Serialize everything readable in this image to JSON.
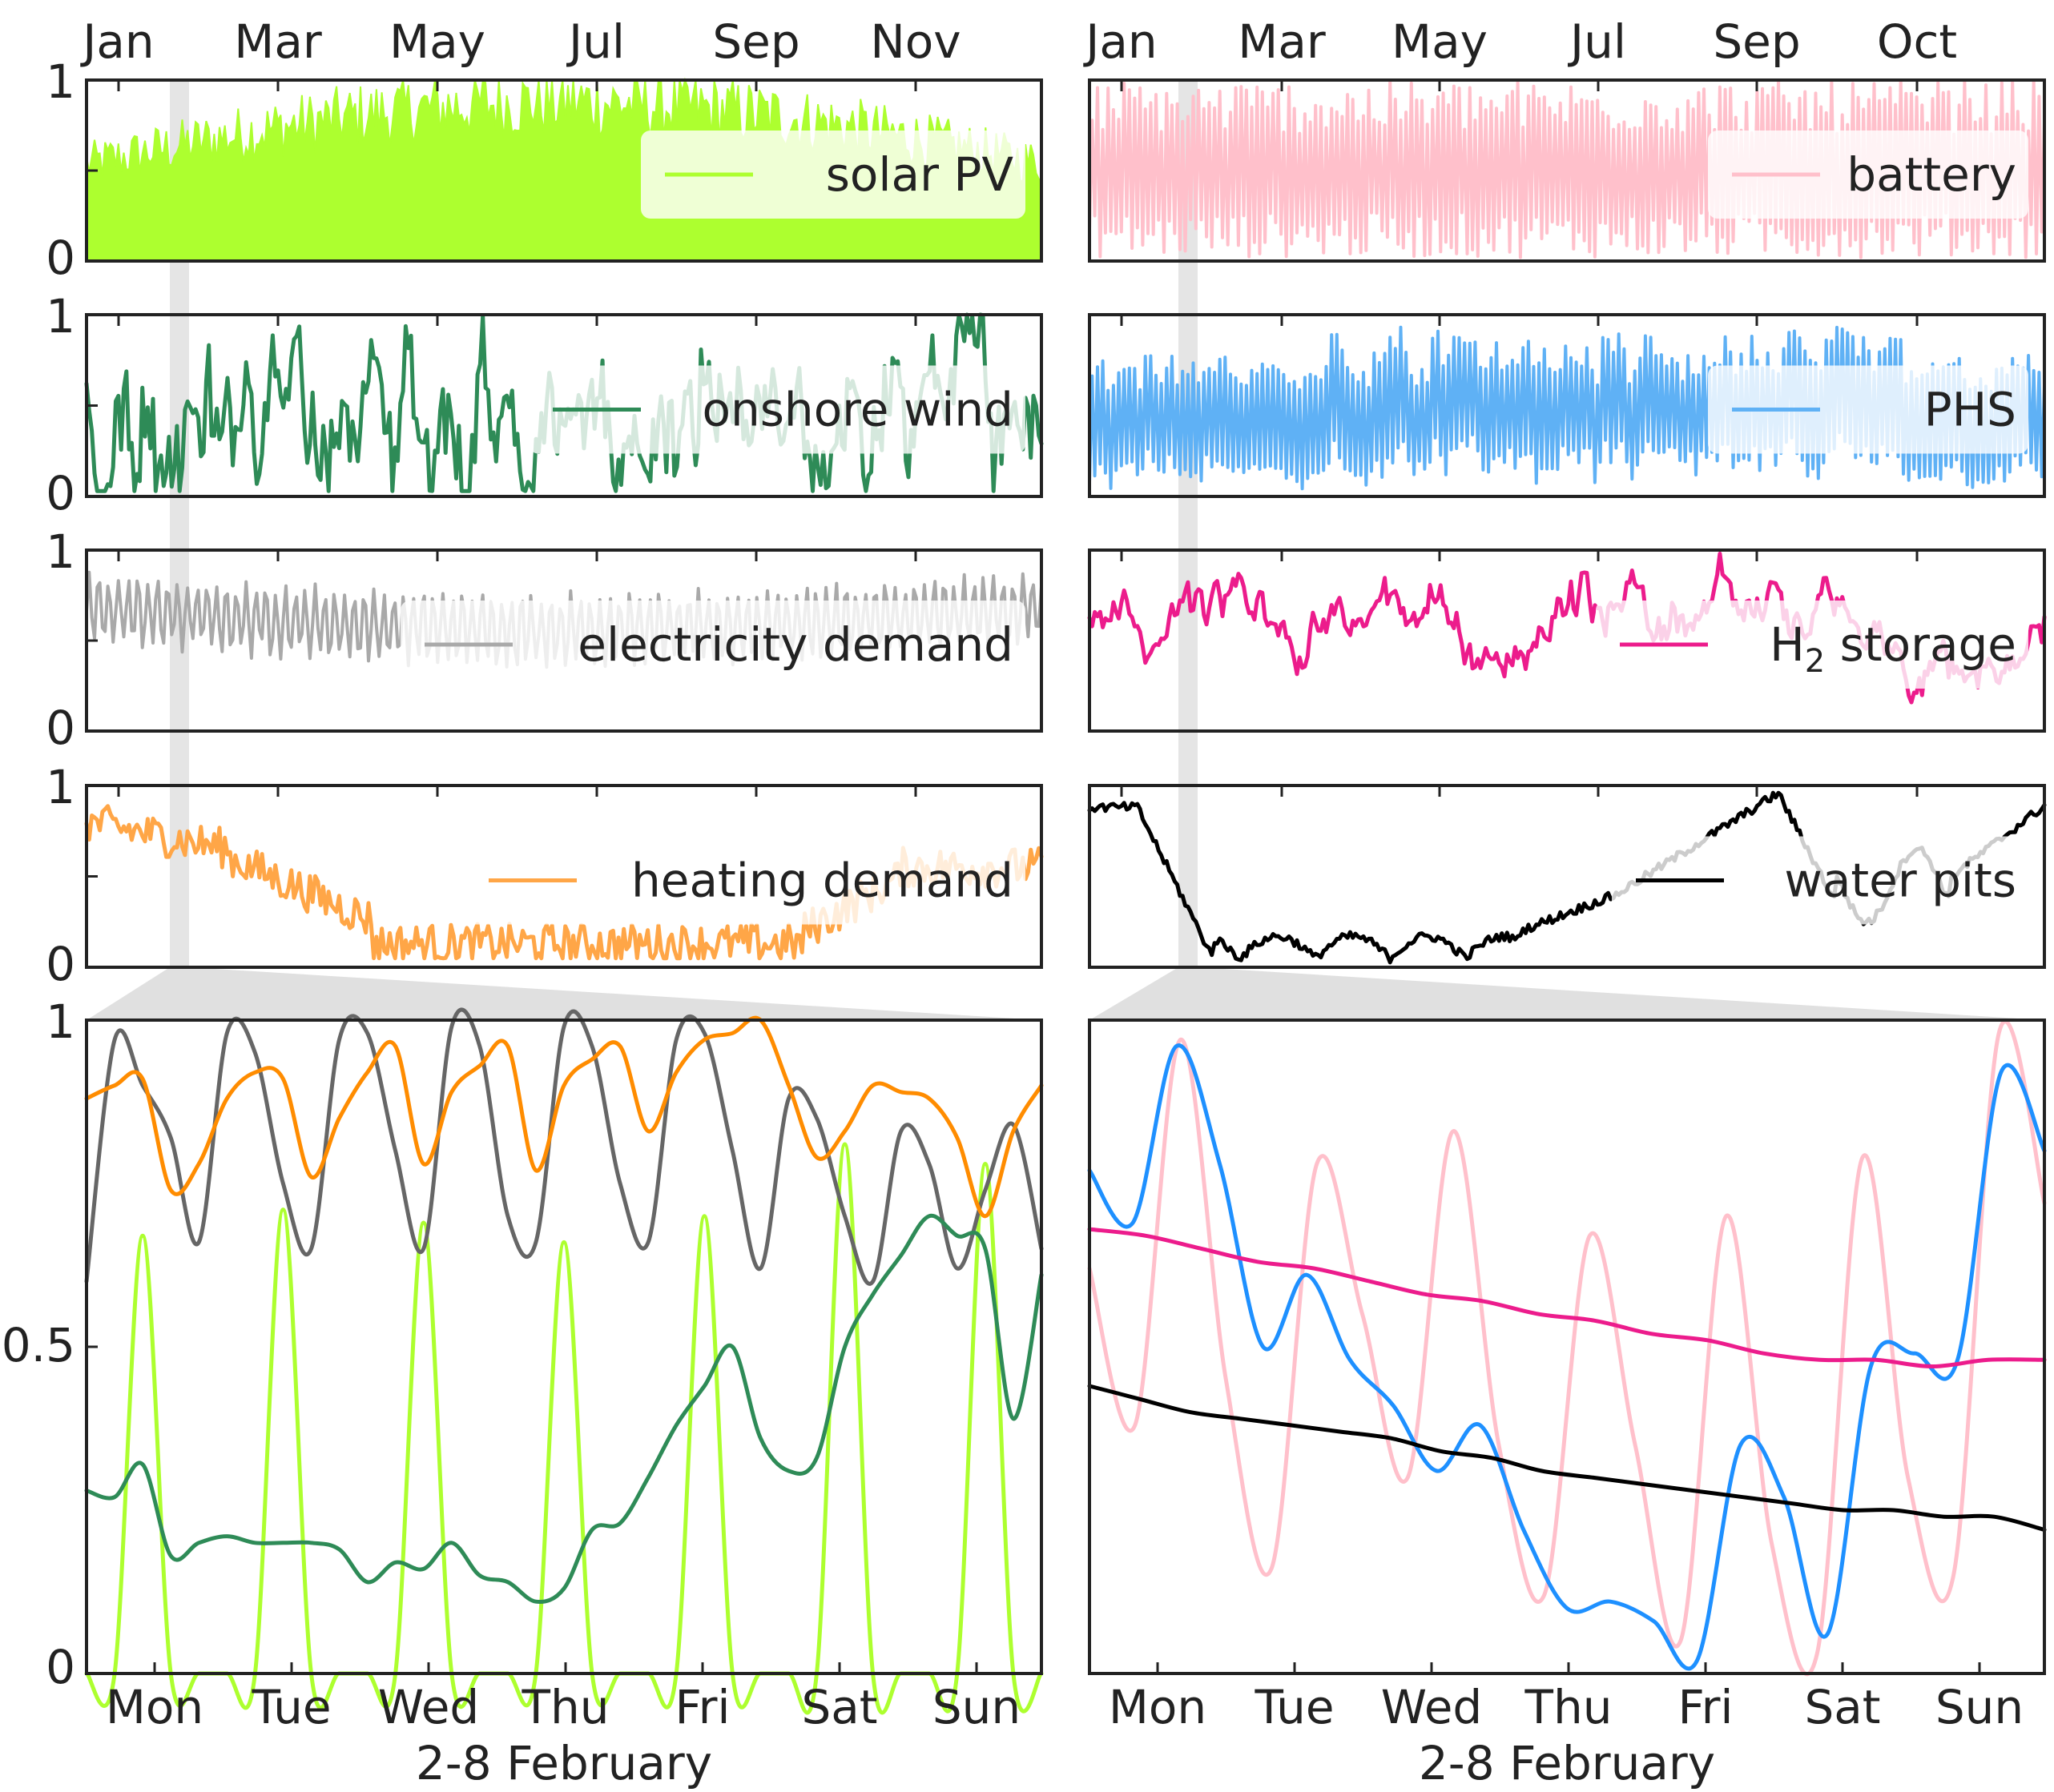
{
  "chart_data": [
    {
      "panel": "top-left-1",
      "type": "area",
      "month_labels": [
        "Jan",
        "Mar",
        "May",
        "Jul",
        "Sep",
        "Nov"
      ],
      "ylim": [
        0,
        1
      ],
      "yticks": [
        0,
        1
      ],
      "series": [
        {
          "name": "solar PV",
          "color": "#adff2f",
          "shape": "solar"
        }
      ],
      "legend_position": "right"
    },
    {
      "panel": "top-left-2",
      "type": "line",
      "ylim": [
        0,
        1
      ],
      "yticks": [
        0,
        1
      ],
      "series": [
        {
          "name": "onshore wind",
          "color": "#2e8b57",
          "shape": "wind"
        }
      ],
      "legend_position": "right"
    },
    {
      "panel": "top-left-3",
      "type": "line",
      "ylim": [
        0,
        1
      ],
      "yticks": [
        0,
        1
      ],
      "series": [
        {
          "name": "electricity demand",
          "color": "#a9a9a9",
          "shape": "elec"
        }
      ],
      "legend_position": "right"
    },
    {
      "panel": "top-left-4",
      "type": "line",
      "ylim": [
        0,
        1
      ],
      "yticks": [
        0,
        1
      ],
      "series": [
        {
          "name": "heating demand",
          "color": "#ffa647",
          "shape": "heat"
        }
      ],
      "legend_position": "right"
    },
    {
      "panel": "top-right-1",
      "type": "line",
      "month_labels": [
        "Jan",
        "Mar",
        "May",
        "Jul",
        "Sep",
        "Oct"
      ],
      "ylim": [
        0,
        1
      ],
      "yticks": [],
      "series": [
        {
          "name": "battery",
          "color": "#ffc0cb",
          "shape": "battery"
        }
      ],
      "legend_position": "right"
    },
    {
      "panel": "top-right-2",
      "type": "line",
      "ylim": [
        0,
        1
      ],
      "yticks": [],
      "series": [
        {
          "name": "PHS",
          "color": "#5fb1f5",
          "shape": "phs"
        }
      ],
      "legend_position": "right"
    },
    {
      "panel": "top-right-3",
      "type": "line",
      "ylim": [
        0,
        1
      ],
      "yticks": [],
      "series": [
        {
          "name": "H",
          "subscript": "2",
          "name_suffix": " storage",
          "color": "#ec1c8c",
          "shape": "h2"
        }
      ],
      "legend_position": "right"
    },
    {
      "panel": "top-right-4",
      "type": "line",
      "ylim": [
        0,
        1
      ],
      "yticks": [],
      "series": [
        {
          "name": "water pits",
          "color": "#000000",
          "shape": "pits"
        }
      ],
      "legend_position": "right"
    },
    {
      "panel": "bottom-left",
      "type": "line",
      "xlabel": "2-8 February",
      "days": [
        "Mon",
        "Tue",
        "Wed",
        "Thu",
        "Fri",
        "Sat",
        "Sun"
      ],
      "ylim": [
        0,
        1
      ],
      "yticks": [
        0,
        0.5,
        1
      ],
      "ytick_labels": [
        "0",
        "0.5",
        "1"
      ],
      "series": [
        {
          "color": "#adff2f",
          "values": [
            0,
            0,
            0.67,
            0,
            0,
            0,
            0,
            0.71,
            0,
            0,
            0,
            0,
            0.69,
            0,
            0,
            0,
            0,
            0.66,
            0,
            0,
            0,
            0,
            0.7,
            0,
            0,
            0,
            0,
            0.81,
            0,
            0,
            0,
            0,
            0.78,
            0,
            0
          ]
        },
        {
          "color": "#666666",
          "values": [
            0.6,
            0.97,
            0.9,
            0.82,
            0.66,
            0.98,
            0.95,
            0.75,
            0.65,
            0.97,
            0.98,
            0.8,
            0.65,
            0.99,
            0.96,
            0.7,
            0.66,
            0.99,
            0.96,
            0.75,
            0.66,
            0.97,
            0.98,
            0.8,
            0.62,
            0.88,
            0.85,
            0.7,
            0.6,
            0.83,
            0.78,
            0.62,
            0.74,
            0.84,
            0.65
          ]
        },
        {
          "color": "#ff8c00",
          "values": [
            0.88,
            0.9,
            0.91,
            0.74,
            0.78,
            0.88,
            0.92,
            0.91,
            0.76,
            0.85,
            0.92,
            0.96,
            0.78,
            0.89,
            0.93,
            0.96,
            0.77,
            0.9,
            0.94,
            0.96,
            0.83,
            0.92,
            0.97,
            0.98,
            1.0,
            0.9,
            0.79,
            0.83,
            0.9,
            0.89,
            0.88,
            0.82,
            0.7,
            0.83,
            0.9
          ]
        },
        {
          "color": "#2e8b57",
          "values": [
            0.28,
            0.27,
            0.32,
            0.18,
            0.2,
            0.21,
            0.2,
            0.2,
            0.2,
            0.19,
            0.14,
            0.17,
            0.16,
            0.2,
            0.15,
            0.14,
            0.11,
            0.13,
            0.22,
            0.23,
            0.3,
            0.38,
            0.44,
            0.5,
            0.36,
            0.31,
            0.33,
            0.5,
            0.58,
            0.64,
            0.7,
            0.67,
            0.65,
            0.39,
            0.61
          ]
        }
      ]
    },
    {
      "panel": "bottom-right",
      "type": "line",
      "xlabel": "2-8 February",
      "days": [
        "Mon",
        "Tue",
        "Wed",
        "Thu",
        "Fri",
        "Sat",
        "Sun"
      ],
      "ylim": [
        0,
        1
      ],
      "yticks": [],
      "series": [
        {
          "color": "#ffc0cb",
          "values": [
            0.62,
            0.38,
            0.97,
            0.45,
            0.16,
            0.78,
            0.55,
            0.3,
            0.83,
            0.35,
            0.12,
            0.67,
            0.35,
            0.05,
            0.7,
            0.2,
            0.03,
            0.79,
            0.3,
            0.15,
            0.98,
            0.72
          ]
        },
        {
          "color": "#1e90ff",
          "values": [
            0.77,
            0.69,
            0.96,
            0.78,
            0.5,
            0.61,
            0.48,
            0.41,
            0.31,
            0.38,
            0.22,
            0.1,
            0.11,
            0.08,
            0.02,
            0.35,
            0.27,
            0.06,
            0.47,
            0.49,
            0.48,
            0.92,
            0.8
          ]
        },
        {
          "color": "#ec1c8c",
          "values": [
            0.68,
            0.67,
            0.65,
            0.63,
            0.62,
            0.6,
            0.58,
            0.57,
            0.55,
            0.54,
            0.52,
            0.51,
            0.49,
            0.48,
            0.48,
            0.47,
            0.48,
            0.48
          ]
        },
        {
          "color": "#000000",
          "values": [
            0.44,
            0.42,
            0.4,
            0.39,
            0.38,
            0.37,
            0.36,
            0.34,
            0.33,
            0.31,
            0.3,
            0.29,
            0.28,
            0.27,
            0.26,
            0.25,
            0.25,
            0.24,
            0.24,
            0.22
          ]
        }
      ]
    }
  ]
}
